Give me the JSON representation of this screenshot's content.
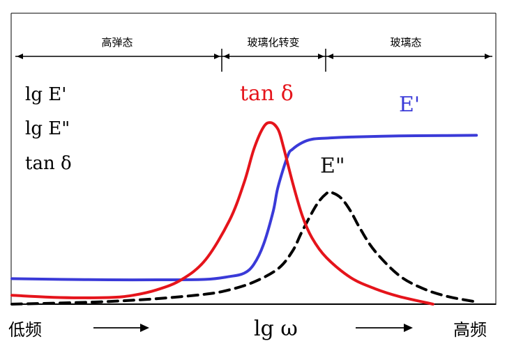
{
  "chart_data": {
    "type": "line",
    "title": "",
    "xlabel_left": "低频",
    "xlabel_center": "lg ω",
    "xlabel_right": "高频",
    "ylabels": [
      "lg E'",
      "lg E\"",
      "tan δ"
    ],
    "regions": [
      {
        "label": "高弹态",
        "x_from": 0.0,
        "x_to": 0.42
      },
      {
        "label": "玻璃化转变",
        "x_from": 0.42,
        "x_to": 0.64
      },
      {
        "label": "玻璃态",
        "x_from": 0.64,
        "x_to": 1.0
      }
    ],
    "xlim": [
      0,
      1
    ],
    "ylim": [
      0,
      1
    ],
    "axis_ticks": false,
    "grid": false,
    "series": [
      {
        "name": "E'",
        "color": "#3a3ad8",
        "dash": "solid",
        "label_color": "#3a3ad8",
        "x": [
          0.0,
          0.1,
          0.2,
          0.3,
          0.4,
          0.45,
          0.48,
          0.5,
          0.52,
          0.54,
          0.55,
          0.57,
          0.58,
          0.6,
          0.62,
          0.65,
          0.7,
          0.8,
          0.9,
          0.96
        ],
        "y": [
          0.115,
          0.112,
          0.11,
          0.11,
          0.112,
          0.125,
          0.14,
          0.18,
          0.27,
          0.42,
          0.53,
          0.67,
          0.7,
          0.73,
          0.745,
          0.75,
          0.755,
          0.76,
          0.762,
          0.763
        ]
      },
      {
        "name": "E\"",
        "color": "#000000",
        "dash": "dashed",
        "label_color": "#111111",
        "x": [
          0.0,
          0.1,
          0.2,
          0.3,
          0.4,
          0.45,
          0.5,
          0.55,
          0.58,
          0.6,
          0.63,
          0.65,
          0.66,
          0.68,
          0.7,
          0.72,
          0.75,
          0.8,
          0.85,
          0.9,
          0.96
        ],
        "y": [
          0.0,
          0.005,
          0.012,
          0.025,
          0.045,
          0.065,
          0.1,
          0.16,
          0.24,
          0.33,
          0.45,
          0.5,
          0.505,
          0.48,
          0.42,
          0.34,
          0.24,
          0.13,
          0.07,
          0.035,
          0.01
        ]
      },
      {
        "name": "tan δ",
        "color": "#e5141b",
        "dash": "solid",
        "label_color": "#e5141b",
        "x": [
          0.0,
          0.1,
          0.2,
          0.25,
          0.3,
          0.35,
          0.4,
          0.45,
          0.48,
          0.5,
          0.52,
          0.535,
          0.55,
          0.56,
          0.58,
          0.6,
          0.62,
          0.65,
          0.7,
          0.75,
          0.8,
          0.87
        ],
        "y": [
          0.04,
          0.03,
          0.03,
          0.04,
          0.065,
          0.11,
          0.2,
          0.38,
          0.55,
          0.7,
          0.8,
          0.82,
          0.79,
          0.72,
          0.55,
          0.4,
          0.3,
          0.21,
          0.12,
          0.07,
          0.035,
          0.0
        ]
      }
    ]
  }
}
